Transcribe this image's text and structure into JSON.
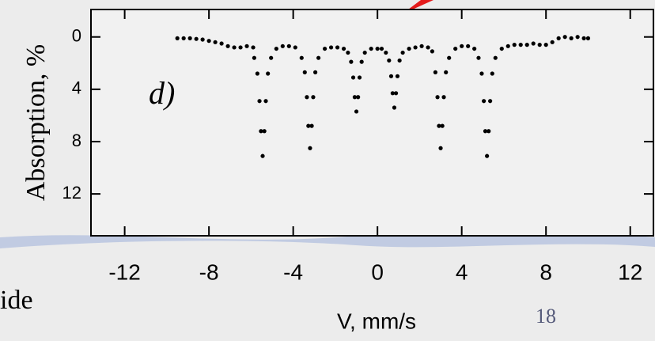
{
  "chart_data": {
    "type": "scatter",
    "y_label": "Absorption, %",
    "x_label": "V, mm/s",
    "annotation": "d)",
    "color": "#000000",
    "y_inverted": true,
    "xlim": [
      -13.6,
      13.1
    ],
    "ylim": [
      -2.1,
      15.2
    ],
    "xticks": [
      -12,
      -8,
      -4,
      0,
      4,
      8,
      12
    ],
    "yticks": [
      0,
      4,
      8,
      12
    ],
    "x": [
      -9.5,
      -9.2,
      -8.9,
      -8.6,
      -8.3,
      -8.0,
      -7.7,
      -7.4,
      -7.1,
      -6.8,
      -6.5,
      -6.2,
      -5.9,
      -5.85,
      -5.7,
      -5.6,
      -5.53,
      -5.45,
      -5.37,
      -5.3,
      -5.2,
      -5.05,
      -4.8,
      -4.5,
      -4.2,
      -3.9,
      -3.6,
      -3.45,
      -3.35,
      -3.28,
      -3.2,
      -3.12,
      -3.05,
      -2.95,
      -2.8,
      -2.5,
      -2.2,
      -1.9,
      -1.6,
      -1.4,
      -1.25,
      -1.15,
      -1.08,
      -1.0,
      -0.92,
      -0.85,
      -0.75,
      -0.6,
      -0.3,
      0.0,
      0.2,
      0.4,
      0.55,
      0.65,
      0.72,
      0.8,
      0.88,
      0.95,
      1.05,
      1.2,
      1.5,
      1.8,
      2.1,
      2.4,
      2.6,
      2.75,
      2.85,
      2.92,
      3.0,
      3.08,
      3.15,
      3.25,
      3.4,
      3.7,
      4.0,
      4.3,
      4.6,
      4.8,
      4.95,
      5.05,
      5.12,
      5.2,
      5.28,
      5.35,
      5.45,
      5.6,
      5.9,
      6.2,
      6.5,
      6.8,
      7.1,
      7.4,
      7.7,
      8.0,
      8.3,
      8.6,
      8.9,
      9.2,
      9.5,
      9.8,
      10.0
    ],
    "values": [
      0.1,
      0.1,
      0.1,
      0.15,
      0.2,
      0.3,
      0.4,
      0.5,
      0.7,
      0.8,
      0.8,
      0.7,
      0.8,
      1.6,
      2.8,
      4.9,
      7.2,
      9.1,
      7.2,
      4.9,
      2.8,
      1.6,
      0.9,
      0.7,
      0.7,
      0.8,
      1.6,
      2.7,
      4.6,
      6.8,
      8.5,
      6.8,
      4.6,
      2.7,
      1.6,
      0.9,
      0.8,
      0.8,
      0.9,
      1.2,
      1.9,
      3.1,
      4.6,
      5.7,
      4.6,
      3.1,
      1.9,
      1.2,
      0.9,
      0.9,
      0.9,
      1.2,
      1.8,
      3.0,
      4.3,
      5.4,
      4.3,
      3.0,
      1.8,
      1.2,
      0.9,
      0.8,
      0.7,
      0.8,
      1.1,
      2.7,
      4.6,
      6.8,
      8.5,
      6.8,
      4.6,
      2.7,
      1.6,
      0.9,
      0.7,
      0.7,
      0.9,
      1.6,
      2.8,
      4.9,
      7.2,
      9.1,
      7.2,
      4.9,
      2.8,
      1.6,
      0.9,
      0.7,
      0.6,
      0.6,
      0.6,
      0.5,
      0.6,
      0.6,
      0.4,
      0.1,
      0.0,
      0.1,
      0.0,
      0.1,
      0.1
    ]
  },
  "slide": {
    "text_fragment": "ide",
    "page_number": "18"
  }
}
